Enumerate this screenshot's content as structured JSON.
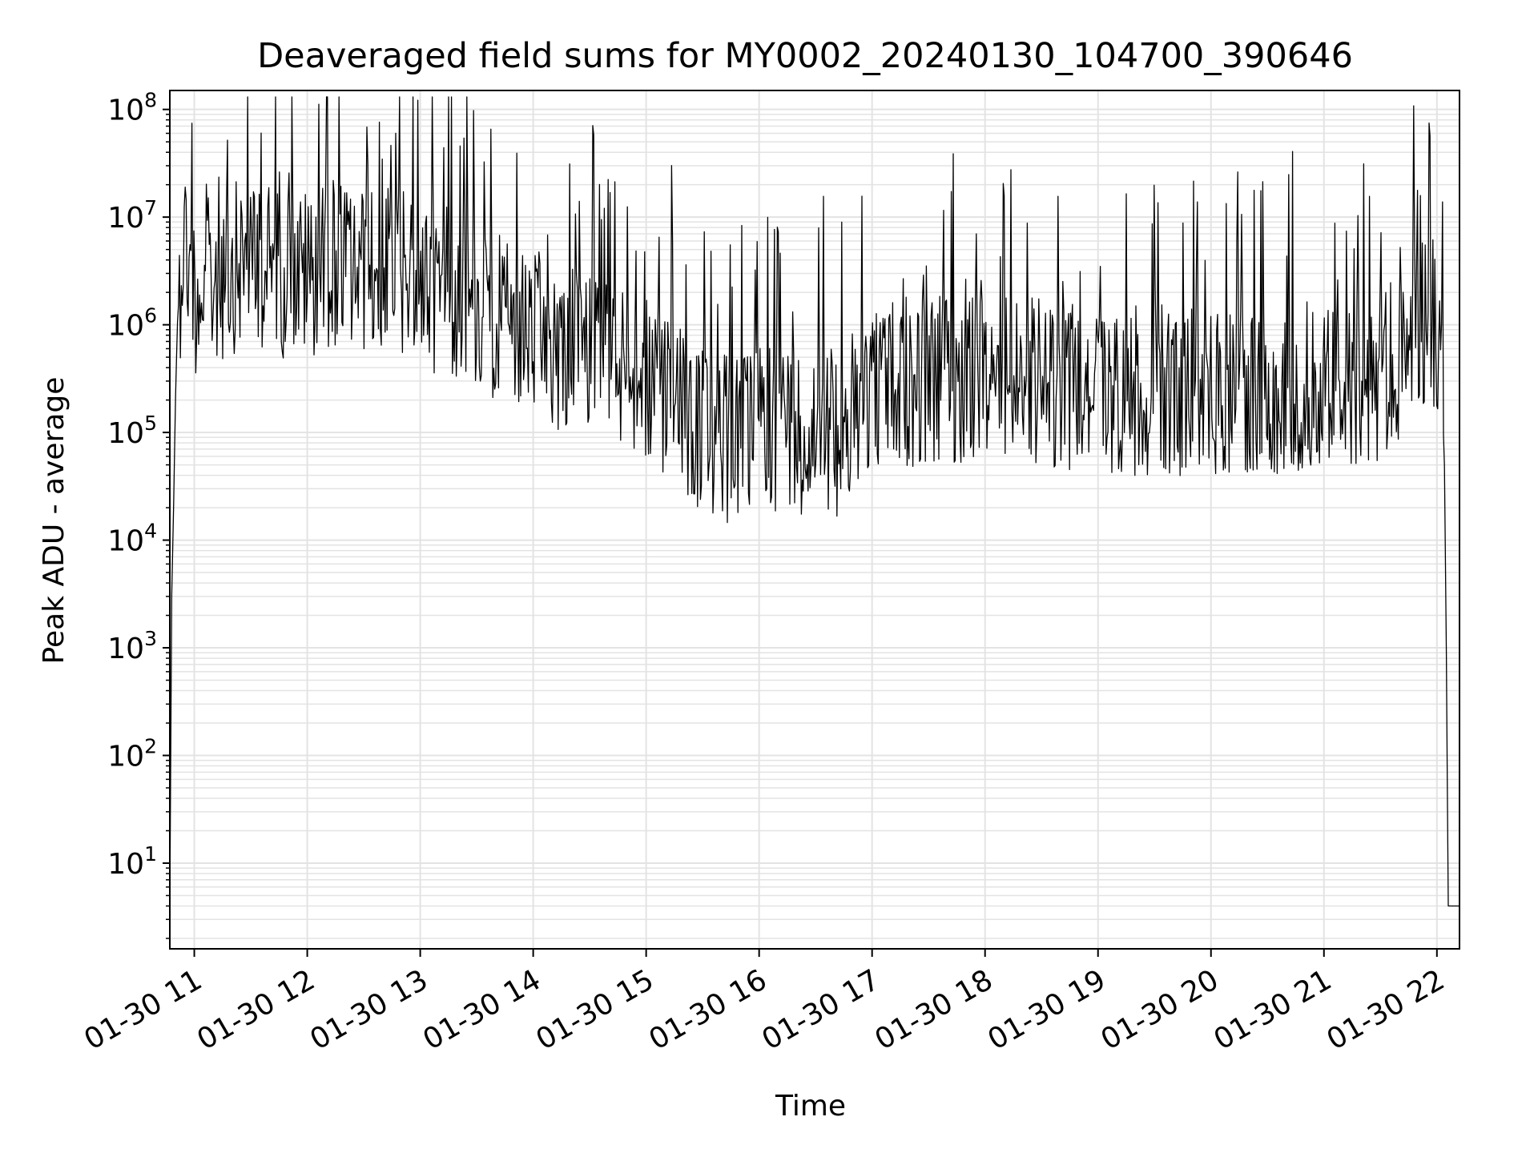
{
  "chart_data": {
    "type": "line",
    "title": "Deaveraged field sums for MY0002_20240130_104700_390646",
    "xlabel": "Time",
    "ylabel": "Peak ADU - average",
    "yscale": "log",
    "ylim": [
      1.6,
      150000000
    ],
    "xlim": [
      "2024-01-30 10:47",
      "2024-01-30 22:12"
    ],
    "grid": true,
    "x_ticks": [
      {
        "time": "2024-01-30 11:00",
        "label": "01-30 11"
      },
      {
        "time": "2024-01-30 12:00",
        "label": "01-30 12"
      },
      {
        "time": "2024-01-30 13:00",
        "label": "01-30 13"
      },
      {
        "time": "2024-01-30 14:00",
        "label": "01-30 14"
      },
      {
        "time": "2024-01-30 15:00",
        "label": "01-30 15"
      },
      {
        "time": "2024-01-30 16:00",
        "label": "01-30 16"
      },
      {
        "time": "2024-01-30 17:00",
        "label": "01-30 17"
      },
      {
        "time": "2024-01-30 18:00",
        "label": "01-30 18"
      },
      {
        "time": "2024-01-30 19:00",
        "label": "01-30 19"
      },
      {
        "time": "2024-01-30 20:00",
        "label": "01-30 20"
      },
      {
        "time": "2024-01-30 21:00",
        "label": "01-30 21"
      },
      {
        "time": "2024-01-30 22:00",
        "label": "01-30 22"
      }
    ],
    "y_ticks": [
      {
        "value": 10,
        "base": "10",
        "exp": "1"
      },
      {
        "value": 100,
        "base": "10",
        "exp": "2"
      },
      {
        "value": 1000,
        "base": "10",
        "exp": "3"
      },
      {
        "value": 10000,
        "base": "10",
        "exp": "4"
      },
      {
        "value": 100000,
        "base": "10",
        "exp": "5"
      },
      {
        "value": 1000000,
        "base": "10",
        "exp": "6"
      },
      {
        "value": 10000000,
        "base": "10",
        "exp": "7"
      },
      {
        "value": 100000000,
        "base": "10",
        "exp": "8"
      }
    ],
    "line_color": "#000000",
    "grid_color": "#e3e3e3",
    "series": [
      {
        "points": [
          [
            "2024-01-30 10:47",
            4
          ],
          [
            "2024-01-30 10:48",
            3000
          ],
          [
            "2024-01-30 10:49",
            20000
          ],
          [
            "2024-01-30 10:50",
            200000
          ],
          [
            "2024-01-30 10:51",
            1000000
          ],
          [
            "2024-01-30 10:52",
            2000000
          ],
          [
            "2024-01-30 10:54",
            8000000
          ],
          [
            "2024-01-30 11:00",
            2000000
          ],
          [
            "2024-01-30 11:15",
            3000000
          ],
          [
            "2024-01-30 11:30",
            4000000
          ],
          [
            "2024-01-30 11:45",
            3000000
          ],
          [
            "2024-01-30 12:00",
            3000000
          ],
          [
            "2024-01-30 12:15",
            4000000
          ],
          [
            "2024-01-30 12:30",
            3000000
          ],
          [
            "2024-01-30 12:45",
            3000000
          ],
          [
            "2024-01-30 13:00",
            2500000
          ],
          [
            "2024-01-30 13:15",
            2000000
          ],
          [
            "2024-01-30 13:30",
            1500000
          ],
          [
            "2024-01-30 13:45",
            1000000
          ],
          [
            "2024-01-30 14:00",
            800000
          ],
          [
            "2024-01-30 14:15",
            600000
          ],
          [
            "2024-01-30 14:30",
            500000
          ],
          [
            "2024-01-30 14:45",
            400000
          ],
          [
            "2024-01-30 15:00",
            300000
          ],
          [
            "2024-01-30 15:15",
            200000
          ],
          [
            "2024-01-30 15:30",
            100000
          ],
          [
            "2024-01-30 15:45",
            80000
          ],
          [
            "2024-01-30 16:00",
            100000
          ],
          [
            "2024-01-30 16:15",
            120000
          ],
          [
            "2024-01-30 16:30",
            100000
          ],
          [
            "2024-01-30 16:45",
            100000
          ],
          [
            "2024-01-30 17:00",
            300000
          ],
          [
            "2024-01-30 17:15",
            300000
          ],
          [
            "2024-01-30 17:30",
            300000
          ],
          [
            "2024-01-30 17:45",
            300000
          ],
          [
            "2024-01-30 18:00",
            300000
          ],
          [
            "2024-01-30 18:30",
            300000
          ],
          [
            "2024-01-30 19:00",
            250000
          ],
          [
            "2024-01-30 19:30",
            250000
          ],
          [
            "2024-01-30 20:00",
            250000
          ],
          [
            "2024-01-30 20:30",
            250000
          ],
          [
            "2024-01-30 21:00",
            300000
          ],
          [
            "2024-01-30 21:30",
            300000
          ],
          [
            "2024-01-30 21:50",
            1000000
          ],
          [
            "2024-01-30 22:00",
            1000000
          ],
          [
            "2024-01-30 22:02",
            600000
          ],
          [
            "2024-01-30 22:04",
            50000
          ],
          [
            "2024-01-30 22:05",
            1000
          ],
          [
            "2024-01-30 22:06",
            4
          ],
          [
            "2024-01-30 22:12",
            4
          ]
        ]
      }
    ]
  }
}
